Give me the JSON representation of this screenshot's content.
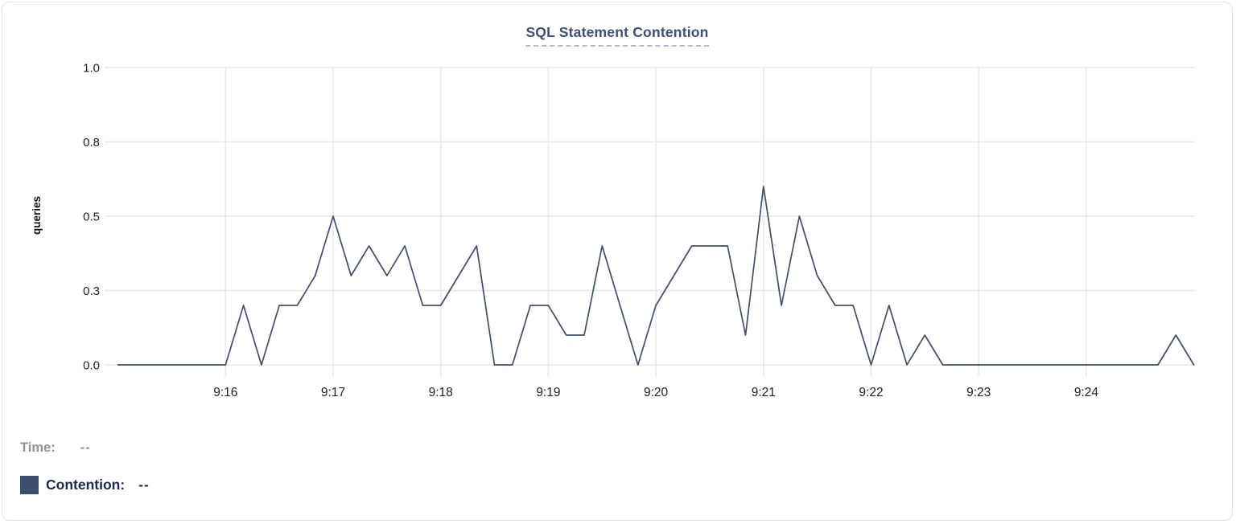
{
  "colors": {
    "line": "#3e4f6d",
    "grid": "#e8e8e8",
    "axis_text": "#212121",
    "title_text": "#3d5174",
    "title_underline": "#b4b9da",
    "time_legend_text": "#8e939d",
    "contention_legend_text": "#1b2a4d",
    "swatch": "#3e4f6d",
    "card_border": "#e4e4e6"
  },
  "tooltip": {
    "time_label": "Time:",
    "time_value": "--",
    "series_label": "Contention:",
    "series_value": "--"
  },
  "chart_data": {
    "type": "line",
    "title": "SQL Statement Contention",
    "xlabel": "",
    "ylabel": "queries",
    "ylim": [
      0,
      1.0
    ],
    "grid": true,
    "legend_position": "bottom-left",
    "y_ticks": [
      {
        "value": 0.0,
        "label": "0.0"
      },
      {
        "value": 0.25,
        "label": "0.3"
      },
      {
        "value": 0.5,
        "label": "0.5"
      },
      {
        "value": 0.75,
        "label": "0.8"
      },
      {
        "value": 1.0,
        "label": "1.0"
      }
    ],
    "x_ticks": [
      {
        "t": 60,
        "label": "9:16"
      },
      {
        "t": 120,
        "label": "9:17"
      },
      {
        "t": 180,
        "label": "9:18"
      },
      {
        "t": 240,
        "label": "9:19"
      },
      {
        "t": 300,
        "label": "9:20"
      },
      {
        "t": 360,
        "label": "9:21"
      },
      {
        "t": 420,
        "label": "9:22"
      },
      {
        "t": 480,
        "label": "9:23"
      },
      {
        "t": 540,
        "label": "9:24"
      }
    ],
    "x_domain_seconds": [
      0,
      600
    ],
    "series": [
      {
        "name": "Contention",
        "color": "#3e4f6d",
        "start_time": "9:15:00",
        "end_time": "9:25:00",
        "interval_seconds": 10,
        "values": [
          0.0,
          0.0,
          0.0,
          0.0,
          0.0,
          0.0,
          0.0,
          0.2,
          0.0,
          0.2,
          0.2,
          0.3,
          0.5,
          0.3,
          0.4,
          0.3,
          0.4,
          0.2,
          0.2,
          0.3,
          0.4,
          0.0,
          0.0,
          0.2,
          0.2,
          0.1,
          0.1,
          0.4,
          0.2,
          0.0,
          0.2,
          0.3,
          0.4,
          0.4,
          0.4,
          0.1,
          0.6,
          0.2,
          0.5,
          0.3,
          0.2,
          0.2,
          0.0,
          0.2,
          0.0,
          0.1,
          0.0,
          0.0,
          0.0,
          0.0,
          0.0,
          0.0,
          0.0,
          0.0,
          0.0,
          0.0,
          0.0,
          0.0,
          0.0,
          0.1,
          0.0
        ]
      }
    ]
  }
}
